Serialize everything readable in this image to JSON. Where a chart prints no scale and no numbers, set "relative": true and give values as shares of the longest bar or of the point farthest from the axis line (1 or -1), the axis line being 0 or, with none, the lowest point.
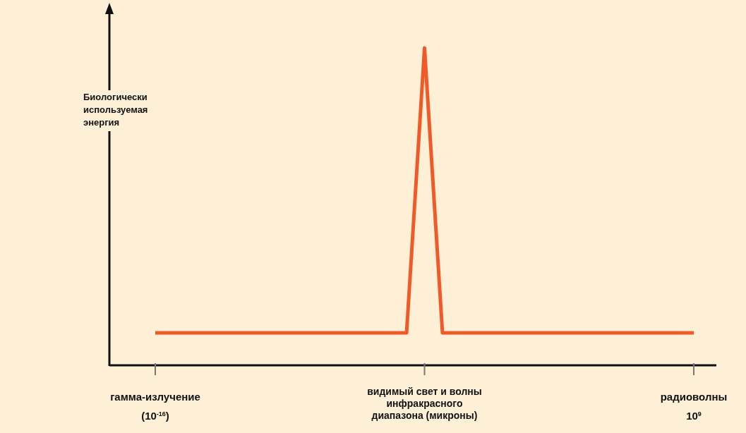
{
  "chart_data": {
    "type": "line",
    "relative": true,
    "ylabel": "Биологически\nиспользуемая\nэнергия",
    "categories": [
      "гамма-излучение\n(10$^{-16}$)",
      null,
      null,
      null,
      null,
      null,
      null,
      null,
      null,
      null,
      null,
      null,
      null,
      null,
      null,
      "видимый свет и волны\nинфракрасного\nдиапазона (микроны)",
      null,
      null,
      null,
      null,
      null,
      null,
      null,
      null,
      null,
      null,
      null,
      null,
      null,
      null,
      "радиоволны\n10$^{9}$"
    ],
    "series": [
      {
        "color": "#f05a28",
        "values": [
          0.102,
          0.102,
          0.102,
          0.102,
          0.102,
          0.102,
          0.102,
          0.102,
          0.102,
          0.102,
          0.102,
          0.102,
          0.102,
          0.102,
          0.102,
          1,
          0.102,
          0.102,
          0.102,
          0.102,
          0.102,
          0.102,
          0.102,
          0.102,
          0.102,
          0.102,
          0.102,
          0.102,
          0.102,
          0.102,
          0.102
        ]
      }
    ]
  }
}
